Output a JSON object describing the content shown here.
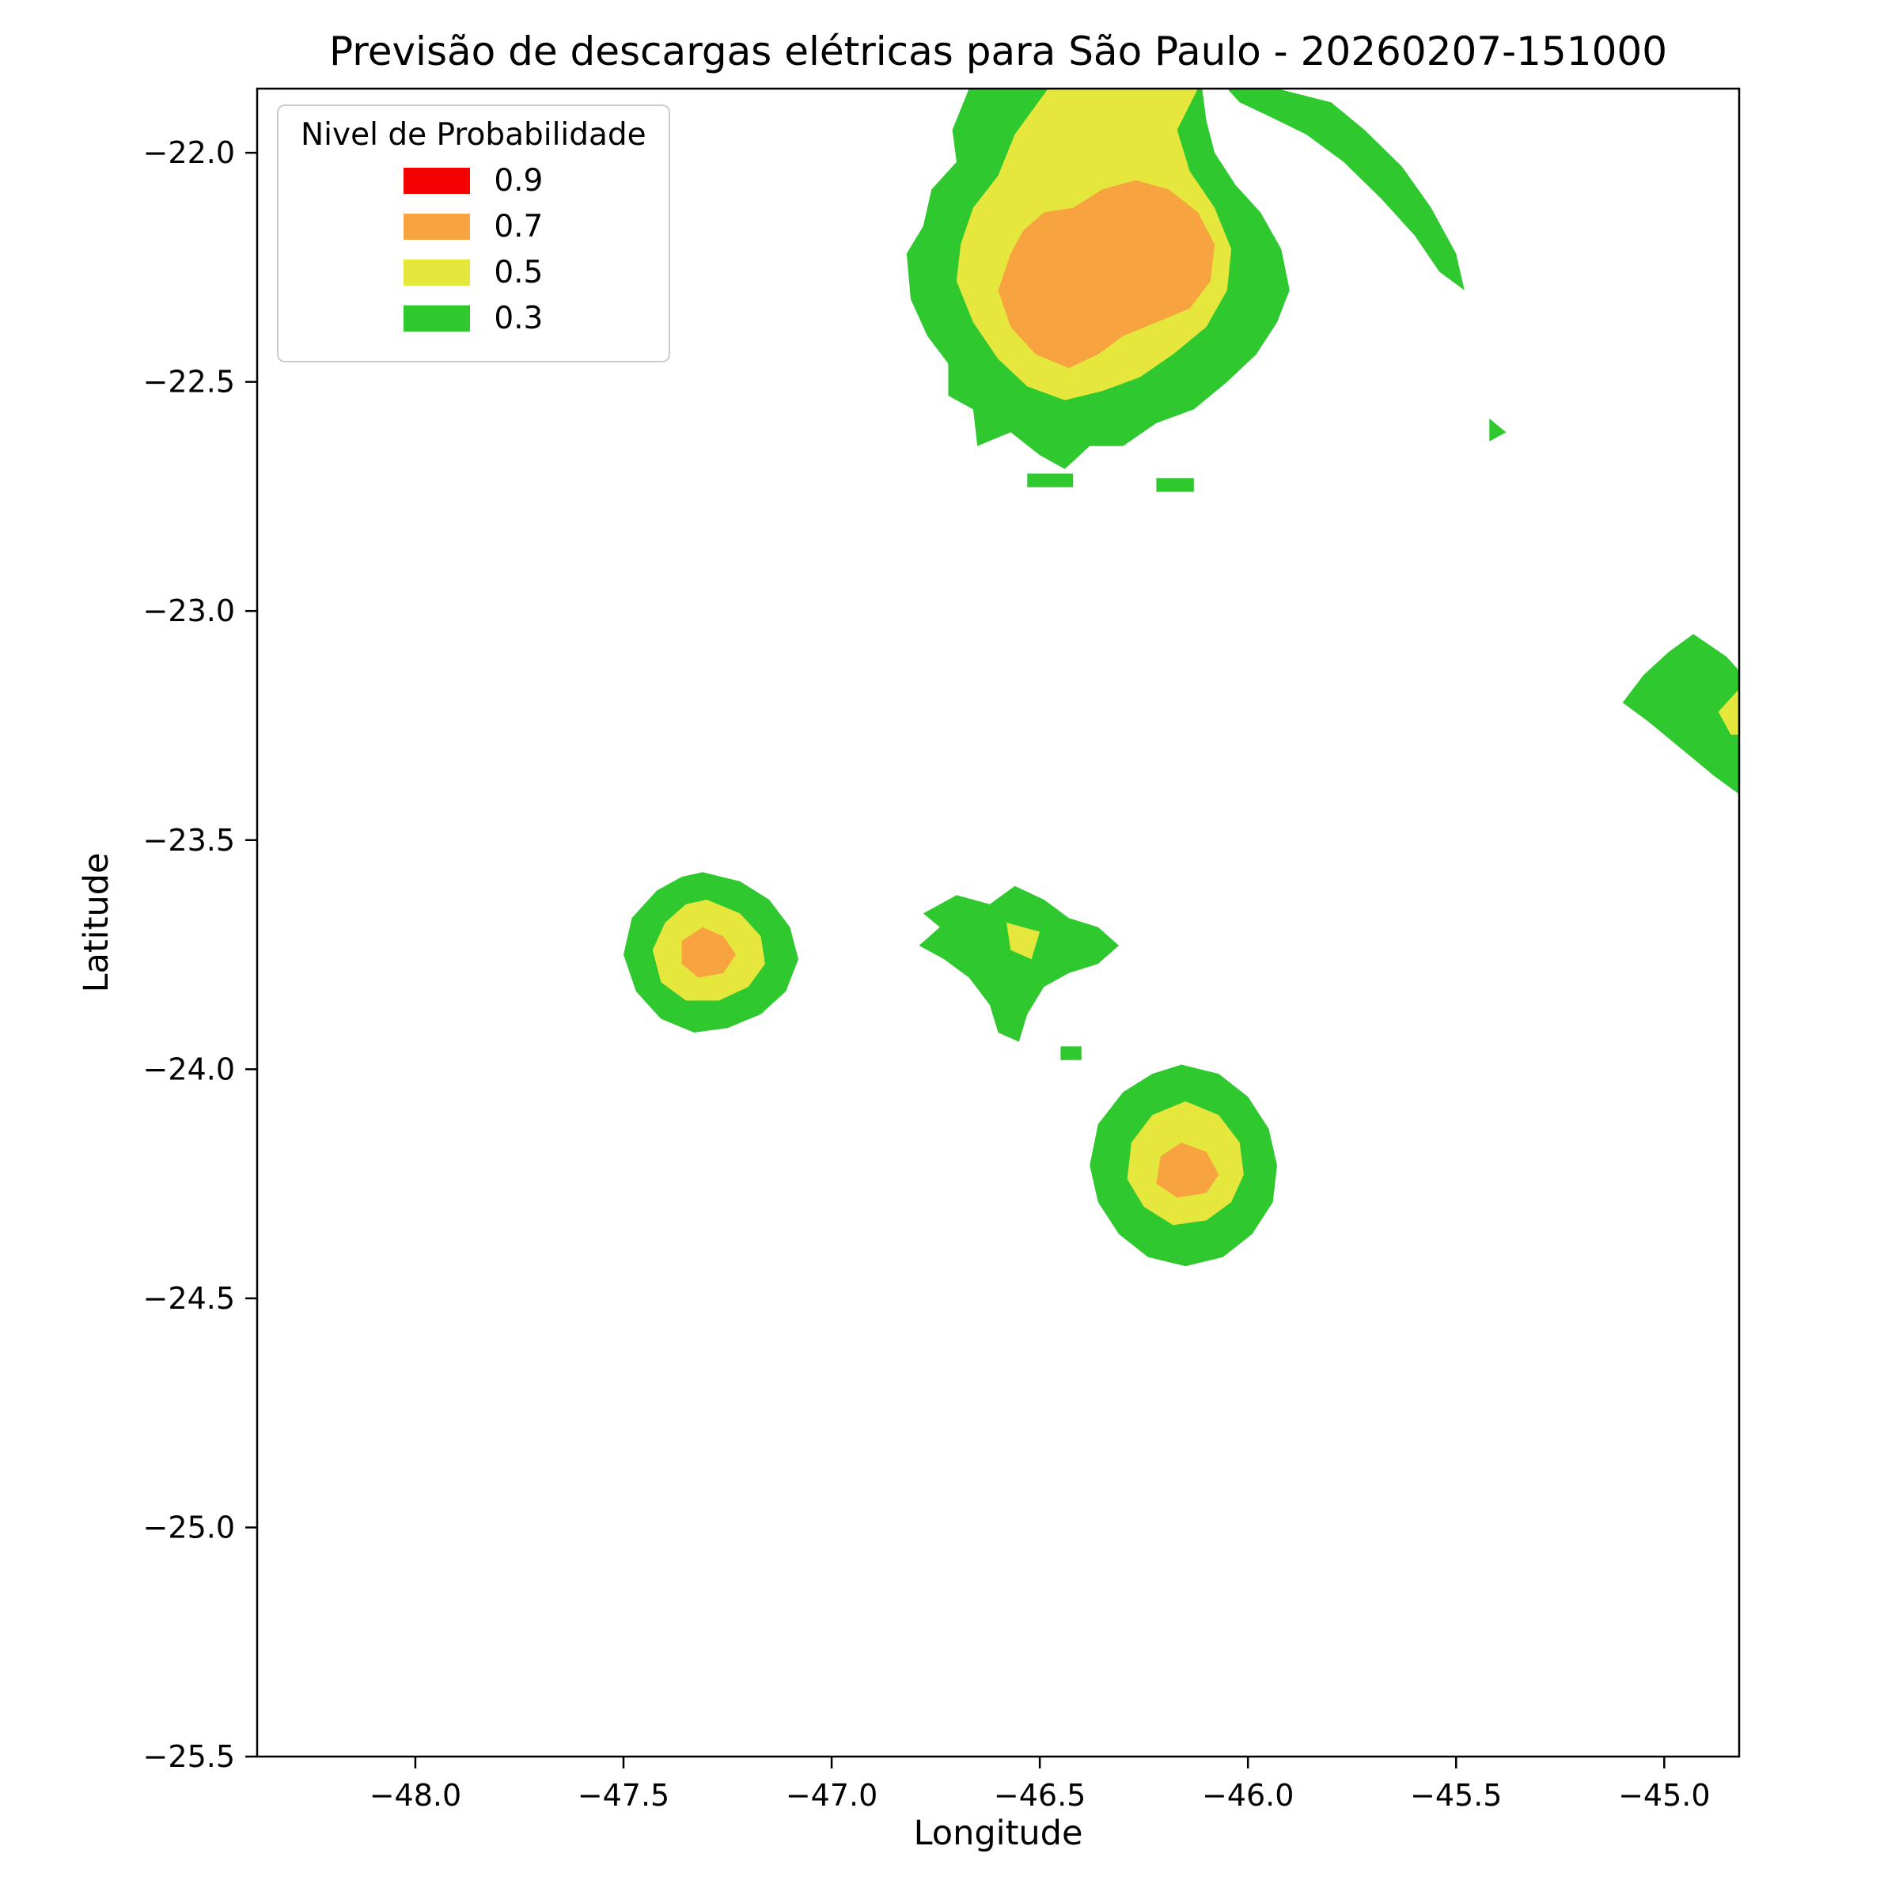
{
  "chart_data": {
    "type": "filled-contour-map",
    "title": "Previsão de descargas elétricas para São Paulo - 20260207-151000",
    "xlabel": "Longitude",
    "ylabel": "Latitude",
    "xlim": [
      -48.38,
      -44.82
    ],
    "ylim": [
      -25.5,
      -21.86
    ],
    "grid": false,
    "legend_position": "upper left",
    "levels": [
      0.3,
      0.5,
      0.7,
      0.9
    ],
    "level_colors": {
      "0.9": "#f40000",
      "0.7": "#f7a440",
      "0.5": "#e6e73c",
      "0.3": "#2fc92f"
    },
    "legend": {
      "title": "Nivel de Probabilidade",
      "entries": [
        {
          "label": "0.9",
          "level": "0.9"
        },
        {
          "label": "0.7",
          "level": "0.7"
        },
        {
          "label": "0.5",
          "level": "0.5"
        },
        {
          "label": "0.3",
          "level": "0.3"
        }
      ]
    },
    "xticks": {
      "values": [
        -48.0,
        -47.5,
        -47.0,
        -46.5,
        -46.0,
        -45.5,
        -45.0
      ],
      "labels": [
        "−48.0",
        "−47.5",
        "−47.0",
        "−46.5",
        "−46.0",
        "−45.5",
        "−45.0"
      ]
    },
    "yticks": {
      "values": [
        -22.0,
        -22.5,
        -23.0,
        -23.5,
        -24.0,
        -24.5,
        -25.0,
        -25.5
      ],
      "labels": [
        "−22.0",
        "−22.5",
        "−23.0",
        "−23.5",
        "−24.0",
        "−24.5",
        "−25.0",
        "−25.5"
      ]
    },
    "regions": [
      {
        "name": "north-cell-outer",
        "level": "0.3",
        "points": [
          [
            -46.67,
            -21.86
          ],
          [
            -46.71,
            -21.95
          ],
          [
            -46.7,
            -22.02
          ],
          [
            -46.76,
            -22.08
          ],
          [
            -46.78,
            -22.16
          ],
          [
            -46.82,
            -22.22
          ],
          [
            -46.81,
            -22.32
          ],
          [
            -46.77,
            -22.4
          ],
          [
            -46.72,
            -22.46
          ],
          [
            -46.72,
            -22.53
          ],
          [
            -46.66,
            -22.56
          ],
          [
            -46.65,
            -22.64
          ],
          [
            -46.57,
            -22.61
          ],
          [
            -46.5,
            -22.66
          ],
          [
            -46.44,
            -22.69
          ],
          [
            -46.38,
            -22.64
          ],
          [
            -46.3,
            -22.64
          ],
          [
            -46.22,
            -22.59
          ],
          [
            -46.13,
            -22.56
          ],
          [
            -46.05,
            -22.5
          ],
          [
            -45.98,
            -22.44
          ],
          [
            -45.93,
            -22.37
          ],
          [
            -45.9,
            -22.3
          ],
          [
            -45.92,
            -22.21
          ],
          [
            -45.97,
            -22.13
          ],
          [
            -46.03,
            -22.07
          ],
          [
            -46.08,
            -22.0
          ],
          [
            -46.1,
            -21.93
          ],
          [
            -46.11,
            -21.86
          ]
        ]
      },
      {
        "name": "north-cell-crescent",
        "level": "0.3",
        "points": [
          [
            -45.93,
            -21.86
          ],
          [
            -45.8,
            -21.89
          ],
          [
            -45.72,
            -21.95
          ],
          [
            -45.63,
            -22.03
          ],
          [
            -45.56,
            -22.12
          ],
          [
            -45.5,
            -22.22
          ],
          [
            -45.48,
            -22.3
          ],
          [
            -45.54,
            -22.26
          ],
          [
            -45.6,
            -22.18
          ],
          [
            -45.68,
            -22.1
          ],
          [
            -45.77,
            -22.02
          ],
          [
            -45.86,
            -21.96
          ],
          [
            -45.95,
            -21.92
          ],
          [
            -46.02,
            -21.89
          ],
          [
            -46.05,
            -21.86
          ]
        ]
      },
      {
        "name": "north-cell-speck-east",
        "level": "0.3",
        "points": [
          [
            -45.42,
            -22.58
          ],
          [
            -45.38,
            -22.61
          ],
          [
            -45.42,
            -22.63
          ]
        ]
      },
      {
        "name": "north-cell-dash-south-1",
        "level": "0.3",
        "points": [
          [
            -46.53,
            -22.7
          ],
          [
            -46.42,
            -22.7
          ],
          [
            -46.42,
            -22.73
          ],
          [
            -46.53,
            -22.73
          ]
        ]
      },
      {
        "name": "north-cell-dash-south-2",
        "level": "0.3",
        "points": [
          [
            -46.22,
            -22.71
          ],
          [
            -46.13,
            -22.71
          ],
          [
            -46.13,
            -22.74
          ],
          [
            -46.22,
            -22.74
          ]
        ]
      },
      {
        "name": "north-cell-mid",
        "level": "0.5",
        "points": [
          [
            -46.48,
            -21.86
          ],
          [
            -46.56,
            -21.96
          ],
          [
            -46.6,
            -22.05
          ],
          [
            -46.66,
            -22.12
          ],
          [
            -46.69,
            -22.2
          ],
          [
            -46.7,
            -22.28
          ],
          [
            -46.66,
            -22.37
          ],
          [
            -46.6,
            -22.45
          ],
          [
            -46.53,
            -22.51
          ],
          [
            -46.44,
            -22.54
          ],
          [
            -46.35,
            -22.52
          ],
          [
            -46.26,
            -22.49
          ],
          [
            -46.18,
            -22.44
          ],
          [
            -46.1,
            -22.38
          ],
          [
            -46.05,
            -22.3
          ],
          [
            -46.04,
            -22.21
          ],
          [
            -46.08,
            -22.12
          ],
          [
            -46.14,
            -22.04
          ],
          [
            -46.17,
            -21.95
          ],
          [
            -46.12,
            -21.86
          ]
        ]
      },
      {
        "name": "north-cell-core",
        "level": "0.7",
        "points": [
          [
            -46.57,
            -22.22
          ],
          [
            -46.6,
            -22.3
          ],
          [
            -46.57,
            -22.38
          ],
          [
            -46.51,
            -22.44
          ],
          [
            -46.43,
            -22.47
          ],
          [
            -46.36,
            -22.44
          ],
          [
            -46.3,
            -22.4
          ],
          [
            -46.22,
            -22.37
          ],
          [
            -46.14,
            -22.34
          ],
          [
            -46.09,
            -22.28
          ],
          [
            -46.08,
            -22.2
          ],
          [
            -46.12,
            -22.13
          ],
          [
            -46.19,
            -22.08
          ],
          [
            -46.27,
            -22.06
          ],
          [
            -46.35,
            -22.08
          ],
          [
            -46.42,
            -22.12
          ],
          [
            -46.49,
            -22.13
          ],
          [
            -46.54,
            -22.17
          ]
        ]
      },
      {
        "name": "east-cell-outer",
        "level": "0.3",
        "points": [
          [
            -44.93,
            -23.05
          ],
          [
            -44.85,
            -23.1
          ],
          [
            -44.82,
            -23.13
          ],
          [
            -44.82,
            -23.4
          ],
          [
            -44.88,
            -23.36
          ],
          [
            -44.96,
            -23.3
          ],
          [
            -45.04,
            -23.24
          ],
          [
            -45.1,
            -23.2
          ],
          [
            -45.05,
            -23.14
          ],
          [
            -44.99,
            -23.09
          ]
        ]
      },
      {
        "name": "east-cell-mid",
        "level": "0.5",
        "points": [
          [
            -44.82,
            -23.17
          ],
          [
            -44.87,
            -23.22
          ],
          [
            -44.84,
            -23.27
          ],
          [
            -44.82,
            -23.27
          ]
        ]
      },
      {
        "name": "west-cell-outer",
        "level": "0.3",
        "points": [
          [
            -47.31,
            -23.57
          ],
          [
            -47.22,
            -23.59
          ],
          [
            -47.15,
            -23.63
          ],
          [
            -47.1,
            -23.69
          ],
          [
            -47.08,
            -23.76
          ],
          [
            -47.11,
            -23.83
          ],
          [
            -47.17,
            -23.88
          ],
          [
            -47.25,
            -23.91
          ],
          [
            -47.33,
            -23.92
          ],
          [
            -47.41,
            -23.89
          ],
          [
            -47.47,
            -23.83
          ],
          [
            -47.5,
            -23.75
          ],
          [
            -47.48,
            -23.67
          ],
          [
            -47.42,
            -23.61
          ],
          [
            -47.36,
            -23.58
          ]
        ]
      },
      {
        "name": "west-cell-mid",
        "level": "0.5",
        "points": [
          [
            -47.3,
            -23.63
          ],
          [
            -47.22,
            -23.66
          ],
          [
            -47.17,
            -23.71
          ],
          [
            -47.16,
            -23.77
          ],
          [
            -47.2,
            -23.82
          ],
          [
            -47.27,
            -23.85
          ],
          [
            -47.35,
            -23.85
          ],
          [
            -47.41,
            -23.81
          ],
          [
            -47.43,
            -23.74
          ],
          [
            -47.4,
            -23.68
          ],
          [
            -47.35,
            -23.64
          ]
        ]
      },
      {
        "name": "west-cell-core",
        "level": "0.7",
        "points": [
          [
            -47.31,
            -23.69
          ],
          [
            -47.26,
            -23.71
          ],
          [
            -47.23,
            -23.75
          ],
          [
            -47.26,
            -23.79
          ],
          [
            -47.32,
            -23.8
          ],
          [
            -47.36,
            -23.77
          ],
          [
            -47.36,
            -23.72
          ]
        ]
      },
      {
        "name": "central-cell-outer",
        "level": "0.3",
        "points": [
          [
            -46.78,
            -23.66
          ],
          [
            -46.7,
            -23.62
          ],
          [
            -46.62,
            -23.64
          ],
          [
            -46.56,
            -23.6
          ],
          [
            -46.49,
            -23.63
          ],
          [
            -46.43,
            -23.67
          ],
          [
            -46.36,
            -23.69
          ],
          [
            -46.31,
            -23.73
          ],
          [
            -46.36,
            -23.77
          ],
          [
            -46.43,
            -23.79
          ],
          [
            -46.49,
            -23.82
          ],
          [
            -46.53,
            -23.88
          ],
          [
            -46.55,
            -23.94
          ],
          [
            -46.6,
            -23.92
          ],
          [
            -46.62,
            -23.86
          ],
          [
            -46.67,
            -23.8
          ],
          [
            -46.73,
            -23.76
          ],
          [
            -46.79,
            -23.73
          ],
          [
            -46.74,
            -23.69
          ]
        ]
      },
      {
        "name": "central-cell-mid",
        "level": "0.5",
        "points": [
          [
            -46.58,
            -23.68
          ],
          [
            -46.5,
            -23.7
          ],
          [
            -46.52,
            -23.76
          ],
          [
            -46.57,
            -23.74
          ]
        ]
      },
      {
        "name": "central-cell-speck-south",
        "level": "0.3",
        "points": [
          [
            -46.45,
            -23.95
          ],
          [
            -46.4,
            -23.95
          ],
          [
            -46.4,
            -23.98
          ],
          [
            -46.45,
            -23.98
          ]
        ]
      },
      {
        "name": "south-cell-outer",
        "level": "0.3",
        "points": [
          [
            -46.16,
            -23.99
          ],
          [
            -46.07,
            -24.01
          ],
          [
            -46.0,
            -24.06
          ],
          [
            -45.95,
            -24.13
          ],
          [
            -45.93,
            -24.21
          ],
          [
            -45.94,
            -24.29
          ],
          [
            -45.99,
            -24.36
          ],
          [
            -46.06,
            -24.41
          ],
          [
            -46.15,
            -24.43
          ],
          [
            -46.24,
            -24.41
          ],
          [
            -46.31,
            -24.36
          ],
          [
            -46.36,
            -24.29
          ],
          [
            -46.38,
            -24.21
          ],
          [
            -46.36,
            -24.12
          ],
          [
            -46.3,
            -24.05
          ],
          [
            -46.23,
            -24.01
          ]
        ]
      },
      {
        "name": "south-cell-mid",
        "level": "0.5",
        "points": [
          [
            -46.15,
            -24.07
          ],
          [
            -46.07,
            -24.1
          ],
          [
            -46.02,
            -24.16
          ],
          [
            -46.01,
            -24.23
          ],
          [
            -46.04,
            -24.29
          ],
          [
            -46.1,
            -24.33
          ],
          [
            -46.18,
            -24.34
          ],
          [
            -46.25,
            -24.3
          ],
          [
            -46.29,
            -24.24
          ],
          [
            -46.28,
            -24.16
          ],
          [
            -46.23,
            -24.1
          ]
        ]
      },
      {
        "name": "south-cell-core",
        "level": "0.7",
        "points": [
          [
            -46.16,
            -24.16
          ],
          [
            -46.1,
            -24.18
          ],
          [
            -46.07,
            -24.23
          ],
          [
            -46.1,
            -24.27
          ],
          [
            -46.17,
            -24.28
          ],
          [
            -46.22,
            -24.25
          ],
          [
            -46.21,
            -24.19
          ]
        ]
      }
    ]
  }
}
